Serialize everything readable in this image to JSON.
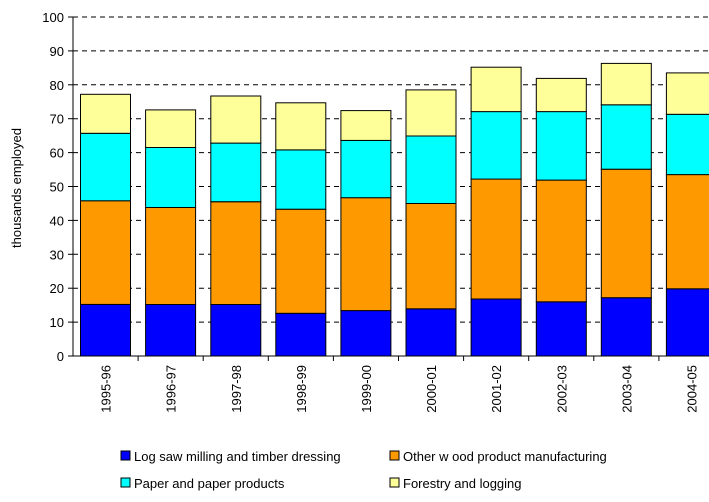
{
  "chart_data": {
    "type": "bar",
    "stacked": true,
    "title": "",
    "xlabel": "",
    "ylabel": "thousands employed",
    "ylim": [
      0,
      100
    ],
    "yticks": [
      0,
      10,
      20,
      30,
      40,
      50,
      60,
      70,
      80,
      90,
      100
    ],
    "grid": "dashed horizontal",
    "legend_position": "bottom",
    "categories": [
      "1995-96",
      "1996-97",
      "1997-98",
      "1998-99",
      "1999-00",
      "2000-01",
      "2001-02",
      "2002-03",
      "2003-04",
      "2004-05"
    ],
    "series": [
      {
        "name": "Log saw milling and timber dressing",
        "color": "#0000FF",
        "values": [
          15.2,
          15.2,
          15.2,
          12.6,
          13.4,
          13.9,
          16.8,
          16.0,
          17.2,
          19.8
        ]
      },
      {
        "name": "Other w ood product manufacturing",
        "color": "#FF9900",
        "values": [
          30.6,
          28.6,
          30.3,
          30.7,
          33.3,
          31.1,
          35.4,
          35.9,
          37.9,
          33.7
        ]
      },
      {
        "name": "Paper and paper products",
        "color": "#00FFFF",
        "values": [
          19.9,
          17.7,
          17.3,
          17.5,
          16.9,
          19.9,
          19.9,
          20.2,
          19.0,
          17.8
        ]
      },
      {
        "name": "Forestry and logging",
        "color": "#FFFF99",
        "values": [
          11.5,
          11.1,
          13.9,
          13.9,
          8.8,
          13.6,
          13.1,
          9.8,
          12.2,
          12.2
        ]
      }
    ]
  }
}
